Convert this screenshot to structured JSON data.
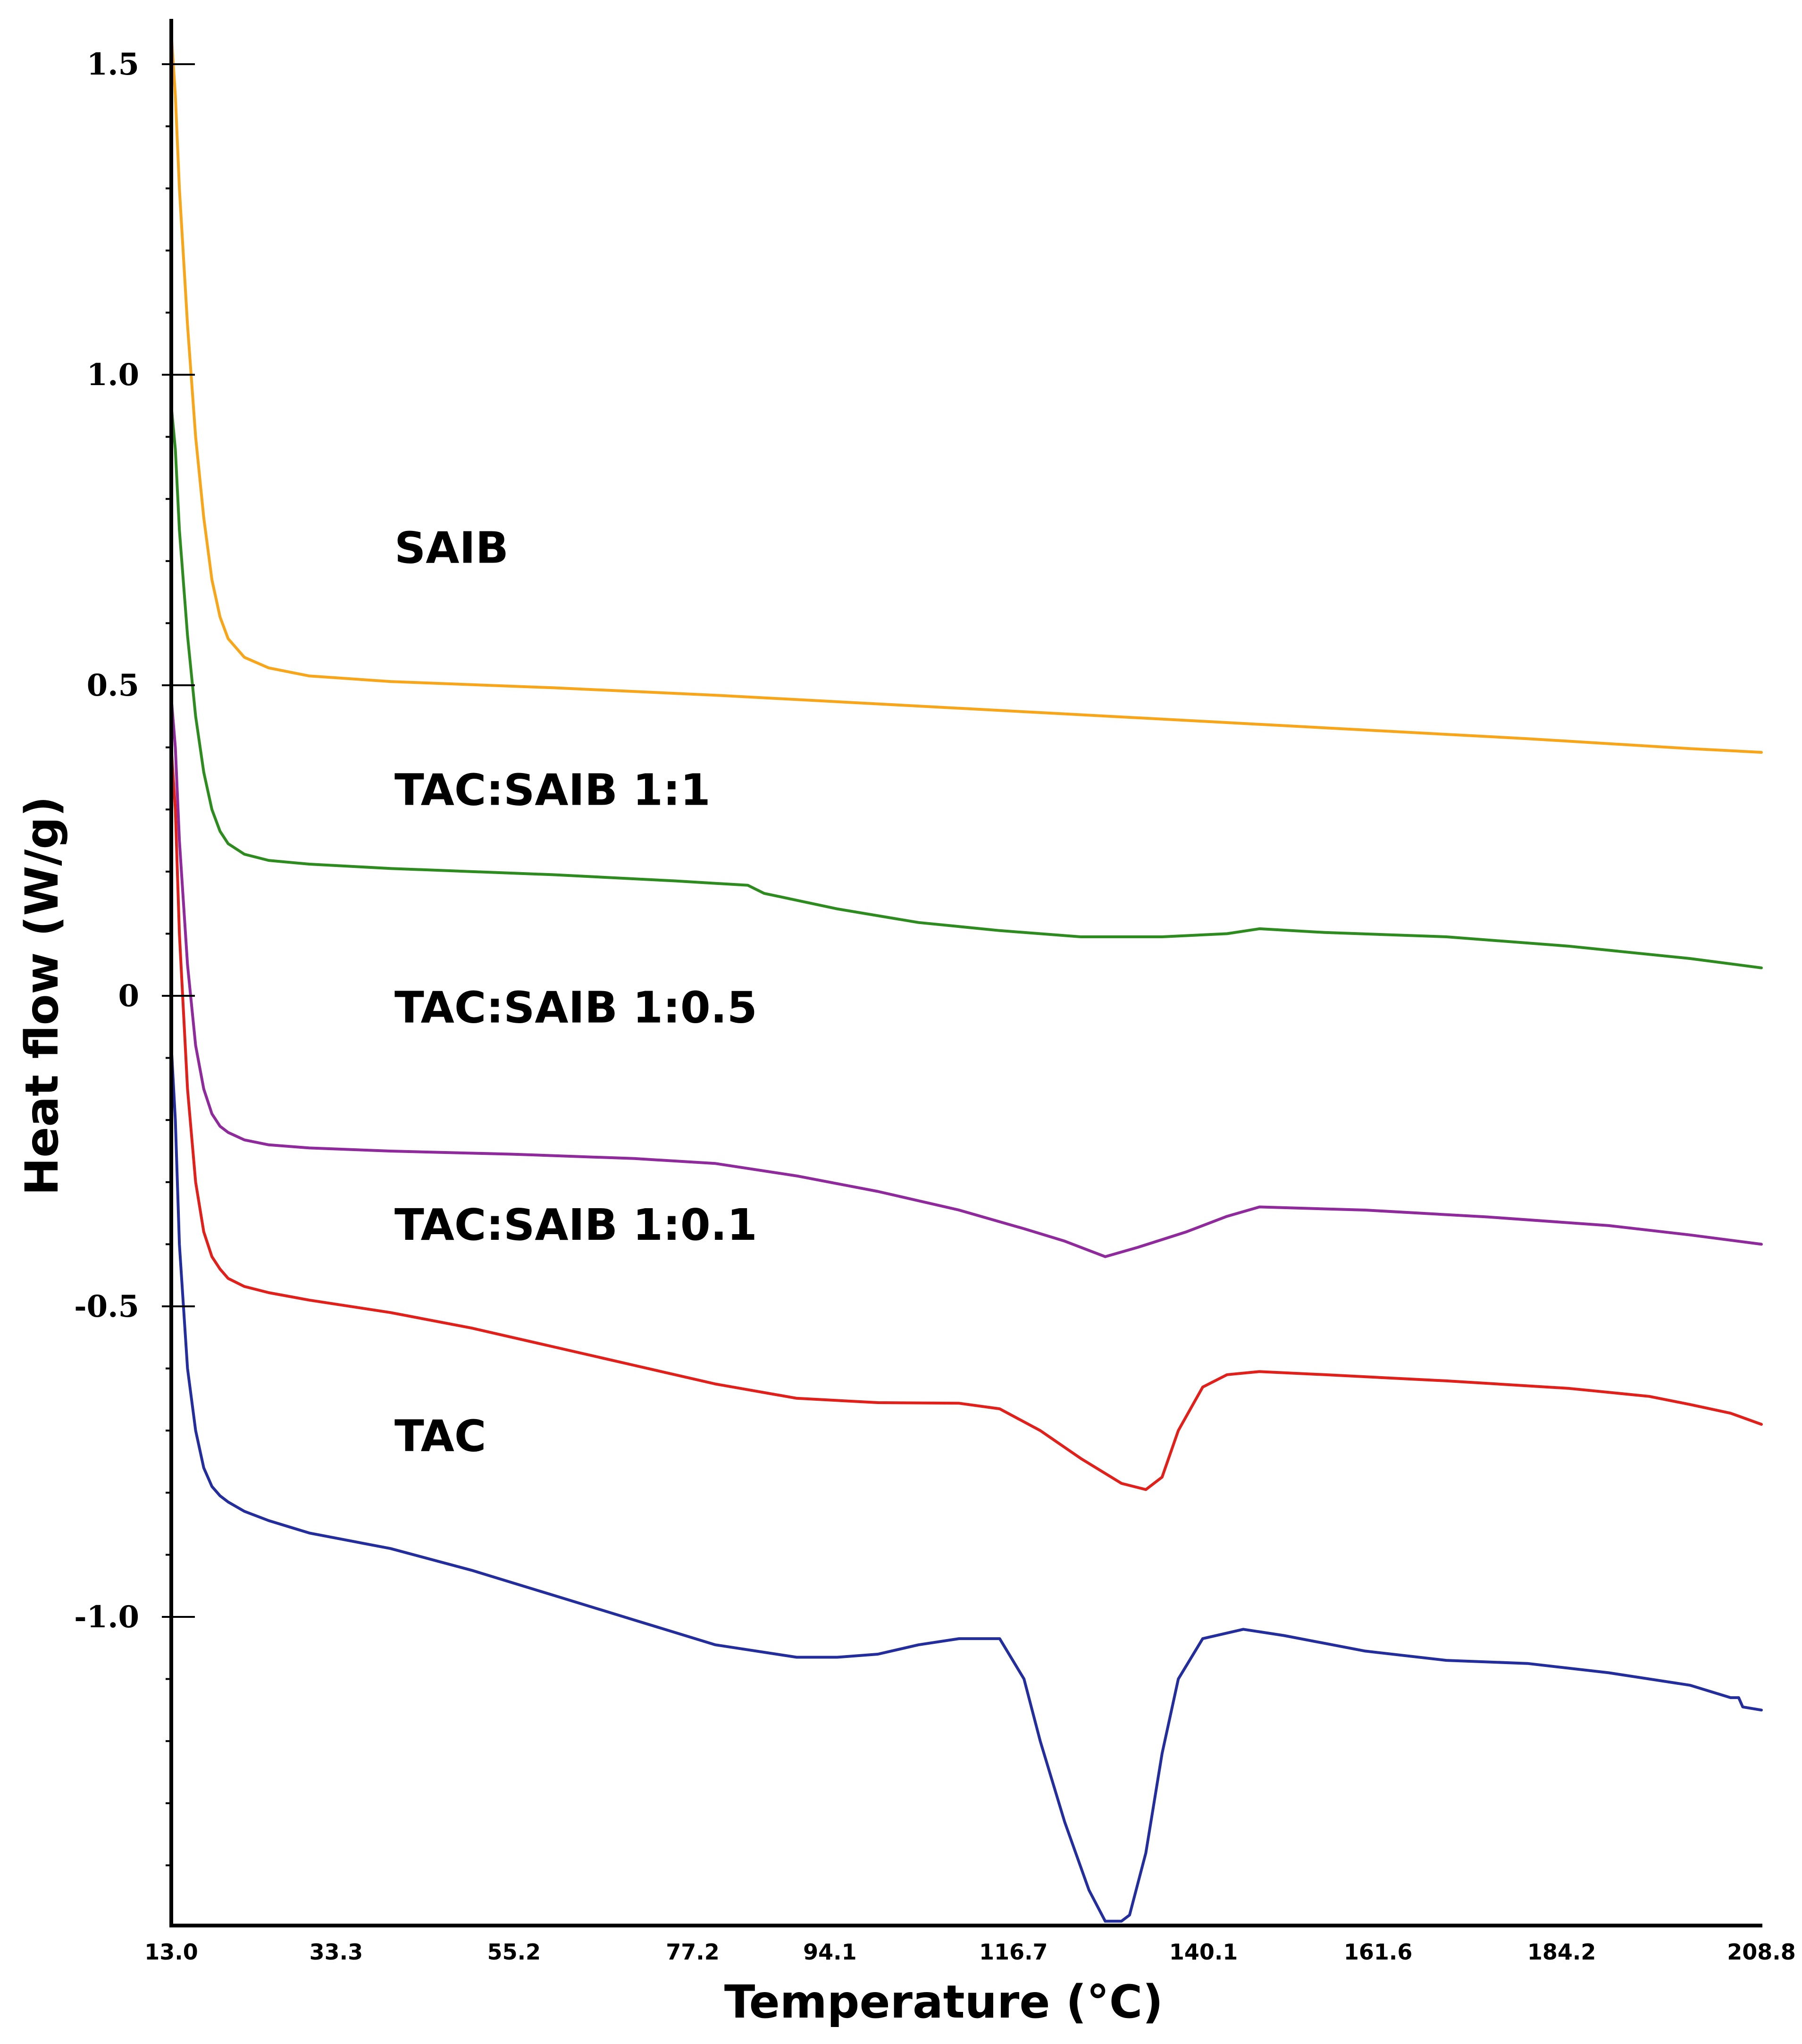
{
  "chart_data": {
    "type": "line",
    "title": "",
    "xlabel": "Temperature (°C)",
    "ylabel": "Heat flow (W/g)",
    "xlim": [
      13.0,
      208.8
    ],
    "ylim": [
      -1.5,
      1.55
    ],
    "x_ticks": [
      "13.0",
      "33.3",
      "55.2",
      "77.2",
      "94.1",
      "116.7",
      "140.1",
      "161.6",
      "184.2",
      "208.8"
    ],
    "y_ticks": [
      {
        "value": 1.5,
        "label": "1.5"
      },
      {
        "value": 1.0,
        "label": "1.0"
      },
      {
        "value": 0.5,
        "label": "0.5"
      },
      {
        "value": 0.0,
        "label": "0"
      },
      {
        "value": -0.5,
        "label": "-0.5"
      },
      {
        "value": -1.0,
        "label": "-1.0"
      }
    ],
    "series": [
      {
        "name": "SAIB",
        "color": "#f7a51a",
        "x": [
          13.0,
          13.5,
          14.0,
          15.0,
          16.0,
          17.0,
          18.0,
          19.0,
          20.0,
          22.0,
          25.0,
          30.0,
          40.0,
          60.0,
          80.0,
          100.0,
          120.0,
          140.0,
          160.0,
          180.0,
          200.0,
          208.8
        ],
        "y": [
          1.55,
          1.45,
          1.3,
          1.08,
          0.9,
          0.77,
          0.67,
          0.61,
          0.575,
          0.545,
          0.528,
          0.515,
          0.506,
          0.496,
          0.484,
          0.47,
          0.456,
          0.442,
          0.428,
          0.414,
          0.398,
          0.392
        ]
      },
      {
        "name": "TAC:SAIB 1:1",
        "color": "#2e8b1f",
        "x": [
          13.0,
          13.5,
          14.0,
          15.0,
          16.0,
          17.0,
          18.0,
          19.0,
          20.0,
          22.0,
          25.0,
          30.0,
          40.0,
          60.0,
          75.0,
          84.0,
          86.0,
          95.0,
          105.0,
          115.0,
          125.0,
          135.0,
          143.0,
          147.0,
          155.0,
          170.0,
          185.0,
          200.0,
          208.8
        ],
        "y": [
          0.95,
          0.88,
          0.75,
          0.58,
          0.45,
          0.36,
          0.3,
          0.265,
          0.245,
          0.228,
          0.218,
          0.212,
          0.205,
          0.195,
          0.185,
          0.178,
          0.165,
          0.14,
          0.118,
          0.105,
          0.095,
          0.095,
          0.1,
          0.108,
          0.102,
          0.095,
          0.08,
          0.06,
          0.045
        ]
      },
      {
        "name": "TAC:SAIB 1:0.5",
        "color": "#8e2a9b",
        "x": [
          13.0,
          13.5,
          14.0,
          15.0,
          16.0,
          17.0,
          18.0,
          19.0,
          20.0,
          22.0,
          25.0,
          30.0,
          40.0,
          55.0,
          70.0,
          80.0,
          90.0,
          100.0,
          110.0,
          118.0,
          123.0,
          126.0,
          128.0,
          132.0,
          138.0,
          143.0,
          147.0,
          160.0,
          175.0,
          190.0,
          200.0,
          208.8
        ],
        "y": [
          0.48,
          0.4,
          0.25,
          0.05,
          -0.08,
          -0.15,
          -0.19,
          -0.21,
          -0.22,
          -0.232,
          -0.24,
          -0.245,
          -0.25,
          -0.255,
          -0.262,
          -0.27,
          -0.29,
          -0.315,
          -0.345,
          -0.375,
          -0.395,
          -0.41,
          -0.42,
          -0.405,
          -0.38,
          -0.355,
          -0.34,
          -0.345,
          -0.356,
          -0.37,
          -0.385,
          -0.4
        ]
      },
      {
        "name": "TAC:SAIB 1:0.1",
        "color": "#e0201a",
        "x": [
          13.0,
          13.5,
          14.0,
          15.0,
          16.0,
          17.0,
          18.0,
          19.0,
          20.0,
          22.0,
          25.0,
          30.0,
          40.0,
          50.0,
          60.0,
          70.0,
          80.0,
          90.0,
          100.0,
          110.0,
          115.0,
          120.0,
          125.0,
          130.0,
          133.0,
          135.0,
          137.0,
          140.0,
          143.0,
          147.0,
          155.0,
          170.0,
          185.0,
          195.0,
          200.0,
          205.0,
          208.8
        ],
        "y": [
          0.4,
          0.3,
          0.1,
          -0.15,
          -0.3,
          -0.38,
          -0.42,
          -0.44,
          -0.455,
          -0.468,
          -0.478,
          -0.49,
          -0.51,
          -0.535,
          -0.565,
          -0.595,
          -0.625,
          -0.648,
          -0.655,
          -0.656,
          -0.665,
          -0.7,
          -0.745,
          -0.785,
          -0.795,
          -0.775,
          -0.7,
          -0.63,
          -0.61,
          -0.605,
          -0.61,
          -0.62,
          -0.632,
          -0.645,
          -0.658,
          -0.672,
          -0.69
        ]
      },
      {
        "name": "TAC",
        "color": "#232d9b",
        "x": [
          13.0,
          13.5,
          14.0,
          15.0,
          16.0,
          17.0,
          18.0,
          19.0,
          20.0,
          22.0,
          25.0,
          30.0,
          40.0,
          50.0,
          60.0,
          70.0,
          80.0,
          90.0,
          95.0,
          100.0,
          105.0,
          110.0,
          115.0,
          118.0,
          120.0,
          123.0,
          126.0,
          128.0,
          130.0,
          131.0,
          133.0,
          135.0,
          137.0,
          140.0,
          145.0,
          150.0,
          160.0,
          170.0,
          180.0,
          190.0,
          200.0,
          205.0,
          206.0,
          206.5,
          208.8
        ],
        "y": [
          -0.08,
          -0.2,
          -0.4,
          -0.6,
          -0.7,
          -0.76,
          -0.79,
          -0.805,
          -0.815,
          -0.83,
          -0.845,
          -0.865,
          -0.89,
          -0.925,
          -0.965,
          -1.005,
          -1.045,
          -1.065,
          -1.065,
          -1.06,
          -1.045,
          -1.035,
          -1.035,
          -1.1,
          -1.2,
          -1.33,
          -1.44,
          -1.49,
          -1.49,
          -1.48,
          -1.38,
          -1.22,
          -1.1,
          -1.035,
          -1.02,
          -1.03,
          -1.055,
          -1.07,
          -1.075,
          -1.09,
          -1.11,
          -1.13,
          -1.13,
          -1.145,
          -1.15
        ]
      }
    ],
    "labels": [
      {
        "series": "SAIB",
        "text": "SAIB"
      },
      {
        "series": "TAC:SAIB 1:1",
        "text": "TAC:SAIB 1:1"
      },
      {
        "series": "TAC:SAIB 1:0.5",
        "text": "TAC:SAIB 1:0.5"
      },
      {
        "series": "TAC:SAIB 1:0.1",
        "text": "TAC:SAIB 1:0.1"
      },
      {
        "series": "TAC",
        "text": "TAC"
      }
    ],
    "grid": false,
    "legend": "none"
  }
}
